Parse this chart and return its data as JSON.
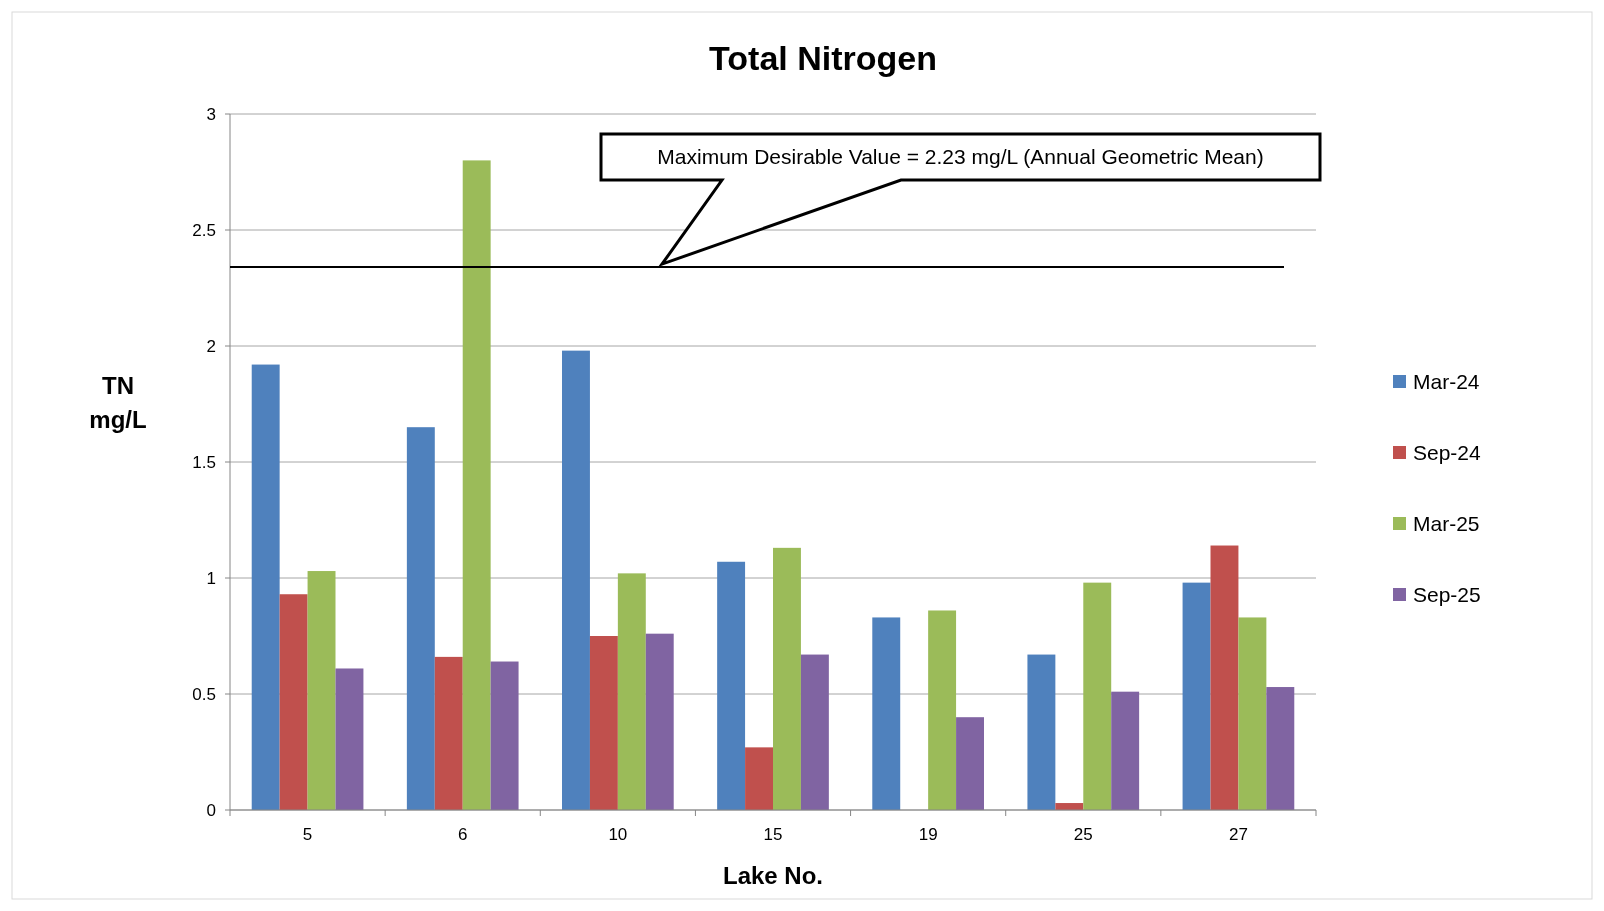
{
  "chart_data": {
    "type": "bar",
    "title": "Total Nitrogen",
    "xlabel": "Lake No.",
    "ylabel": "TN mg/L",
    "categories": [
      "5",
      "6",
      "10",
      "15",
      "19",
      "25",
      "27"
    ],
    "series": [
      {
        "name": "Mar-24",
        "color": "#4f81bd",
        "values": [
          1.92,
          1.65,
          1.98,
          1.07,
          0.83,
          0.67,
          0.98
        ]
      },
      {
        "name": "Sep-24",
        "color": "#c0504d",
        "values": [
          0.93,
          0.66,
          0.75,
          0.27,
          null,
          0.03,
          1.14
        ]
      },
      {
        "name": "Mar-25",
        "color": "#9bbb59",
        "values": [
          1.03,
          2.8,
          1.02,
          1.13,
          0.86,
          0.98,
          0.83
        ]
      },
      {
        "name": "Sep-25",
        "color": "#8064a2",
        "values": [
          0.61,
          0.64,
          0.76,
          0.67,
          0.4,
          0.51,
          0.53
        ]
      }
    ],
    "ylim": [
      0,
      3
    ],
    "yticks": [
      0,
      0.5,
      1,
      1.5,
      2,
      2.5,
      3
    ],
    "grid": "y",
    "legend": "right",
    "annotations": [
      "Maximum Desirable Value = 2.23 mg/L (Annual Geometric Mean)"
    ],
    "ref_lines": [
      {
        "axis": "y",
        "value": 2.34,
        "color": "#000000"
      }
    ]
  }
}
